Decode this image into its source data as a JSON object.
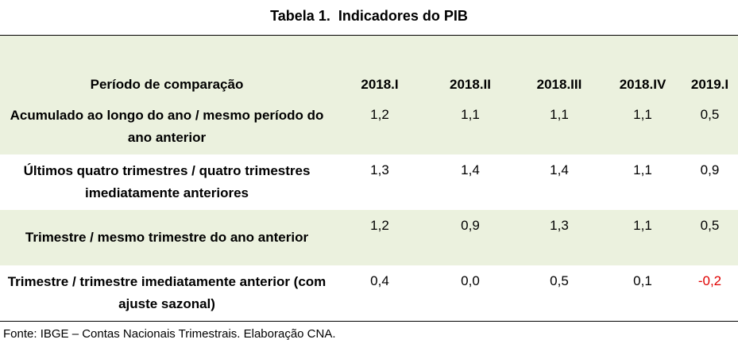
{
  "header": {
    "title": "Tabela 1.  Indicadores do PIB"
  },
  "table": {
    "columns": [
      "Período de comparação",
      "2018.I",
      "2018.II",
      "2018.III",
      "2018.IV",
      "2019.I"
    ],
    "rows": [
      [
        "Acumulado ao longo do ano / mesmo período do ano anterior",
        "1,2",
        "1,1",
        "1,1",
        "1,1",
        "0,5"
      ],
      [
        "Últimos quatro trimestres / quatro trimestres imediatamente anteriores",
        "1,3",
        "1,4",
        "1,4",
        "1,1",
        "0,9"
      ],
      [
        "Trimestre / mesmo trimestre do ano anterior",
        "1,2",
        "0,9",
        "1,3",
        "1,1",
        "0,5"
      ],
      [
        "Trimestre / trimestre imediatamente anterior (com ajuste sazonal)",
        "0,4",
        "0,0",
        "0,5",
        "0,1",
        "-0,2"
      ]
    ]
  },
  "footer": {
    "source": "Fonte: IBGE – Contas Nacionais Trimestrais. Elaboração CNA."
  }
}
